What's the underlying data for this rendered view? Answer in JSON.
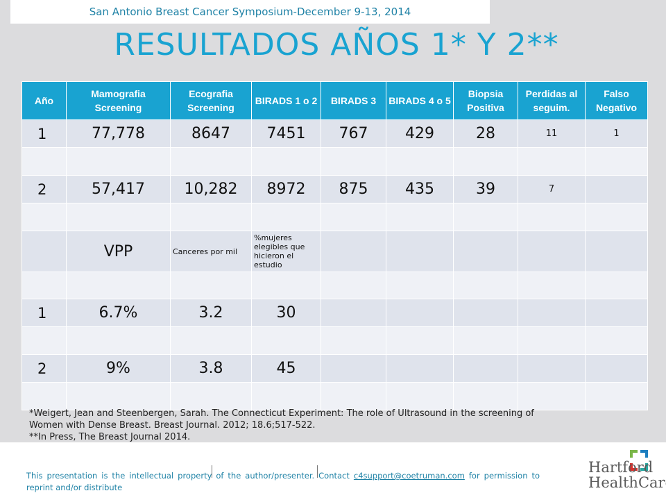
{
  "header": {
    "conference": "San Antonio Breast Cancer Symposium-December 9-13, 2014"
  },
  "title": "RESULTADOS AÑOS 1* Y 2**",
  "table": {
    "headers": [
      "Año",
      "Mamografia Screening",
      "Ecografia Screening",
      "BIRADS 1 o 2",
      "BIRADS 3",
      "BIRADS 4 o 5",
      "Biopsia Positiva",
      "Perdidas al seguim.",
      "Falso Negativo"
    ],
    "rows": [
      [
        "1",
        "77,778",
        "8647",
        "7451",
        "767",
        "429",
        "28",
        "11",
        "1"
      ],
      [
        "",
        "",
        "",
        "",
        "",
        "",
        "",
        "",
        ""
      ],
      [
        "2",
        "57,417",
        "10,282",
        "8972",
        "875",
        "435",
        "39",
        "7",
        ""
      ],
      [
        "",
        "",
        "",
        "",
        "",
        "",
        "",
        "",
        ""
      ],
      [
        "",
        "VPP",
        "Canceres por mil",
        "%mujeres elegibles que hicieron el estudio",
        "",
        "",
        "",
        "",
        ""
      ],
      [
        "",
        "",
        "",
        "",
        "",
        "",
        "",
        "",
        ""
      ],
      [
        "1",
        "6.7%",
        "3.2",
        "30",
        "",
        "",
        "",
        "",
        ""
      ],
      [
        "",
        "",
        "",
        "",
        "",
        "",
        "",
        "",
        ""
      ],
      [
        "2",
        "9%",
        "3.8",
        "45",
        "",
        "",
        "",
        "",
        ""
      ],
      [
        "",
        "",
        "",
        "",
        "",
        "",
        "",
        "",
        ""
      ]
    ]
  },
  "footnotes": {
    "line1": "*Weigert, Jean and Steenbergen, Sarah.  The Connecticut Experiment: The role of Ultrasound in the screening of",
    "line2": "Women with Dense Breast. Breast Journal. 2012; 18.6;517-522.",
    "line3": "**In Press, The Breast Journal 2014."
  },
  "footer": {
    "text_before": "This presentation is the intellectual property of the author/presenter. Contact ",
    "email": "c4support@coetruman.com",
    "text_after": " for permission to reprint and/or distribute"
  },
  "logo": {
    "line1": "Hartford",
    "line2": "HealthCare"
  },
  "colors": {
    "accent": "#19a3d1",
    "header_text": "#1f82a6",
    "row_odd": "#dfe3ec",
    "row_even": "#eff1f6",
    "logo_green": "#7ab648",
    "logo_blue": "#1e7fc0",
    "logo_red": "#d7322e",
    "logo_teal": "#27a8a0"
  }
}
